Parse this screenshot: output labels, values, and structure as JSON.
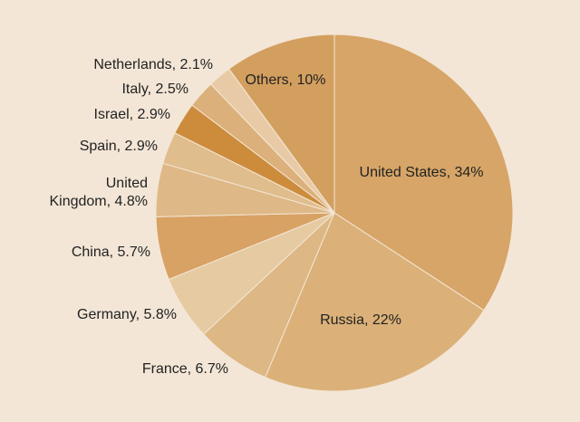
{
  "chart_data": {
    "type": "pie",
    "start_angle_deg": 0,
    "direction": "clockwise",
    "slices": [
      {
        "label": "United States",
        "text": "United States, 34%",
        "value": 34,
        "color": "#d7a567"
      },
      {
        "label": "Russia",
        "text": "Russia, 22%",
        "value": 22,
        "color": "#dbb179"
      },
      {
        "label": "France",
        "text": "France, 6.7%",
        "value": 6.7,
        "color": "#ddb784"
      },
      {
        "label": "Germany",
        "text": "Germany, 5.8%",
        "value": 5.8,
        "color": "#e6caa2"
      },
      {
        "label": "China",
        "text": "China, 5.7%",
        "value": 5.7,
        "color": "#d8a264"
      },
      {
        "label": "United Kingdom",
        "text": "United Kingdom, 4.8%",
        "lines": [
          "United",
          "Kingdom, 4.8%"
        ],
        "value": 4.8,
        "color": "#deb886"
      },
      {
        "label": "Spain",
        "text": "Spain, 2.9%",
        "value": 2.9,
        "color": "#e0bd8d"
      },
      {
        "label": "Israel",
        "text": "Israel, 2.9%",
        "value": 2.9,
        "color": "#cc8c3c"
      },
      {
        "label": "Italy",
        "text": "Italy, 2.5%",
        "value": 2.5,
        "color": "#dcb07a"
      },
      {
        "label": "Netherlands",
        "text": "Netherlands, 2.1%",
        "value": 2.1,
        "color": "#e8cba6"
      },
      {
        "label": "Others",
        "text": "Others, 10%",
        "value": 10,
        "color": "#d39f5f"
      }
    ]
  }
}
